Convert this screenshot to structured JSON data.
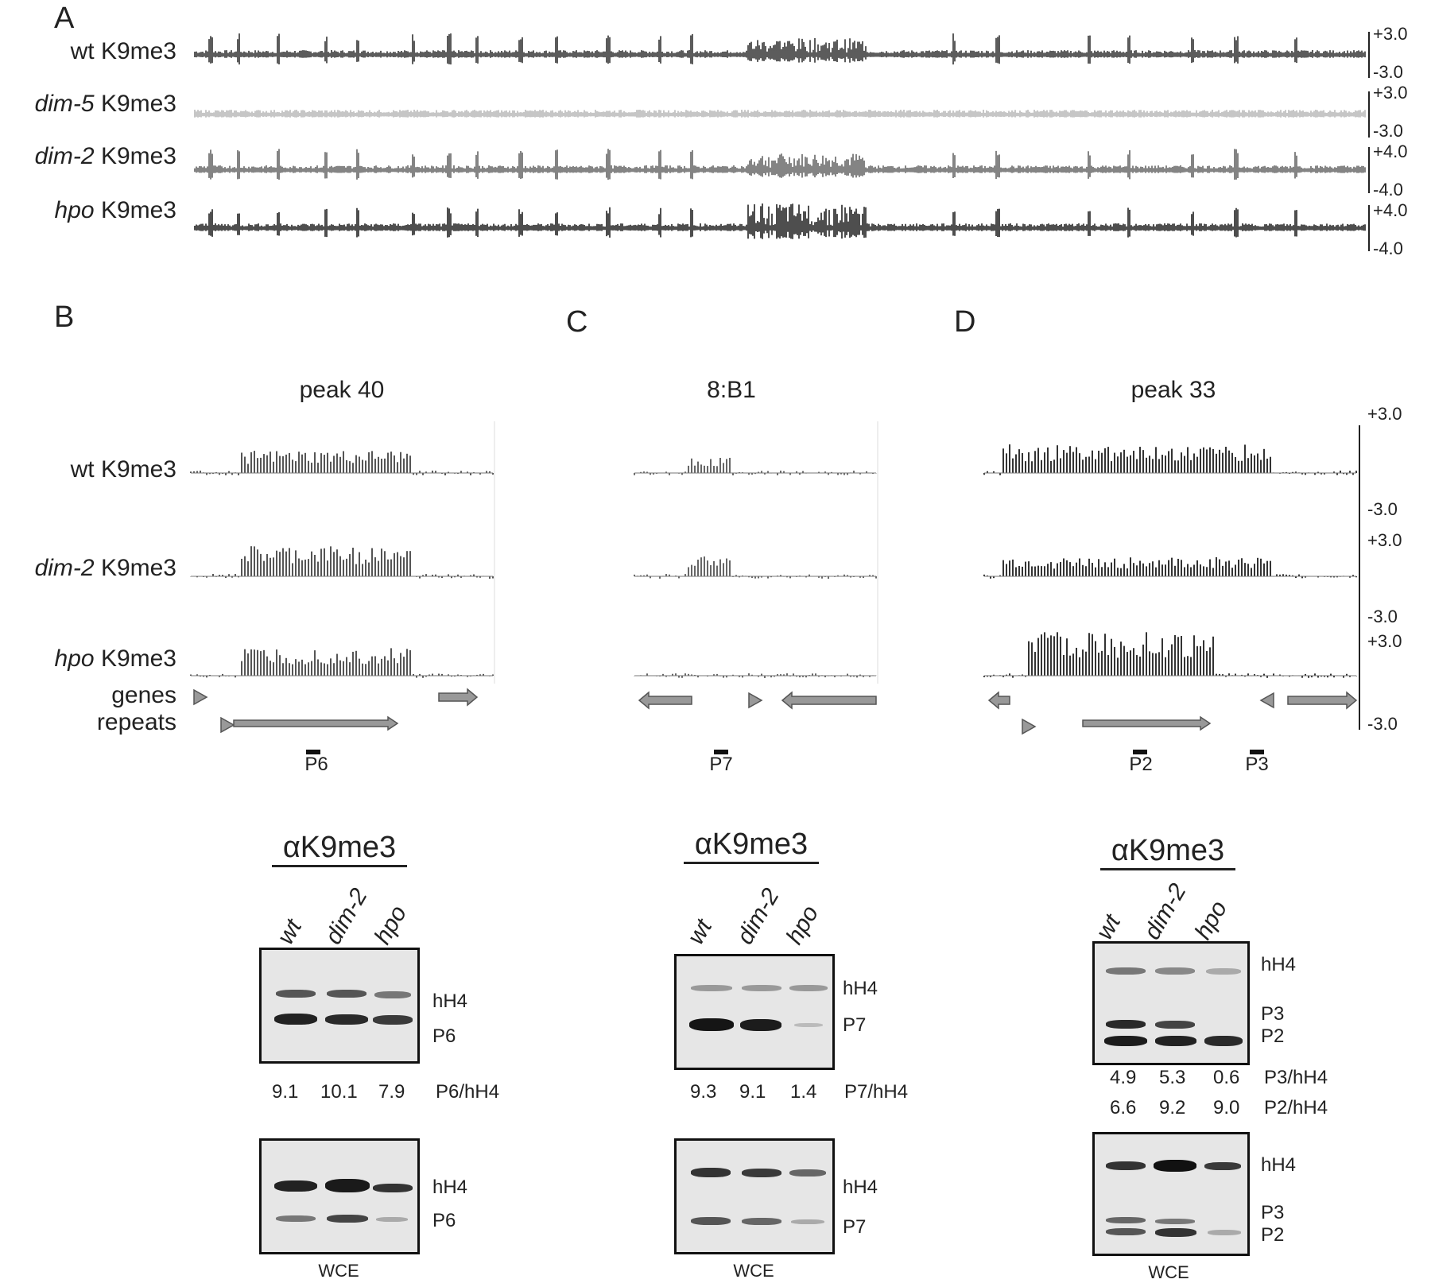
{
  "panel_letters": {
    "a": "A",
    "b": "B",
    "c": "C",
    "d": "D"
  },
  "panel_a": {
    "tracks": [
      {
        "strain": "wt",
        "mark": "K9me3",
        "italic": false,
        "scale_top": "+3.0",
        "scale_bottom": "-3.0",
        "color": "#333333"
      },
      {
        "strain": "dim-5",
        "mark": "K9me3",
        "italic": true,
        "scale_top": "+3.0",
        "scale_bottom": "-3.0",
        "color": "#b8b8b8"
      },
      {
        "strain": "dim-2",
        "mark": "K9me3",
        "italic": true,
        "scale_top": "+4.0",
        "scale_bottom": "-4.0",
        "color": "#666666"
      },
      {
        "strain": "hpo",
        "mark": "K9me3",
        "italic": true,
        "scale_top": "+4.0",
        "scale_bottom": "-4.0",
        "color": "#222222"
      }
    ]
  },
  "tracks_b_to_d": {
    "rows": [
      {
        "strain": "wt",
        "mark": "K9me3"
      },
      {
        "strain": "dim-2",
        "mark": "K9me3"
      },
      {
        "strain": "hpo",
        "mark": "K9me3"
      }
    ],
    "annotation_genes": "genes",
    "annotation_repeats": "repeats",
    "scale": {
      "r1_top": "+3.0",
      "r1_bottom": "-3.0",
      "r2_top": "+3.0",
      "r2_bottom": "-3.0",
      "r3_top": "+3.0",
      "r3_bottom": "-3.0"
    }
  },
  "panel_b": {
    "title": "peak 40",
    "probe": "P6"
  },
  "panel_c": {
    "title": "8:B1",
    "probe": "P7"
  },
  "panel_d": {
    "title": "peak 33",
    "probe_1": "P2",
    "probe_2": "P3"
  },
  "gels": {
    "antibody": "αK9me3",
    "lanes": [
      "wt",
      "dim-2",
      "hpo"
    ],
    "wce": "WCE",
    "b": {
      "top_labels": [
        "hH4",
        "P6"
      ],
      "ratio_label": "P6/hH4",
      "ratios": [
        "9.1",
        "10.1",
        "7.9"
      ],
      "bottom_labels": [
        "hH4",
        "P6"
      ]
    },
    "c": {
      "top_labels": [
        "hH4",
        "P7"
      ],
      "ratio_label": "P7/hH4",
      "ratios": [
        "9.3",
        "9.1",
        "1.4"
      ],
      "bottom_labels": [
        "hH4",
        "P7"
      ]
    },
    "d": {
      "top_labels": [
        "hH4",
        "P3",
        "P2"
      ],
      "ratio_labels": [
        "P3/hH4",
        "P2/hH4"
      ],
      "ratios_p3": [
        "4.9",
        "5.3",
        "0.6"
      ],
      "ratios_p2": [
        "6.6",
        "9.2",
        "9.0"
      ],
      "bottom_labels": [
        "hH4",
        "P3",
        "P2"
      ]
    }
  }
}
